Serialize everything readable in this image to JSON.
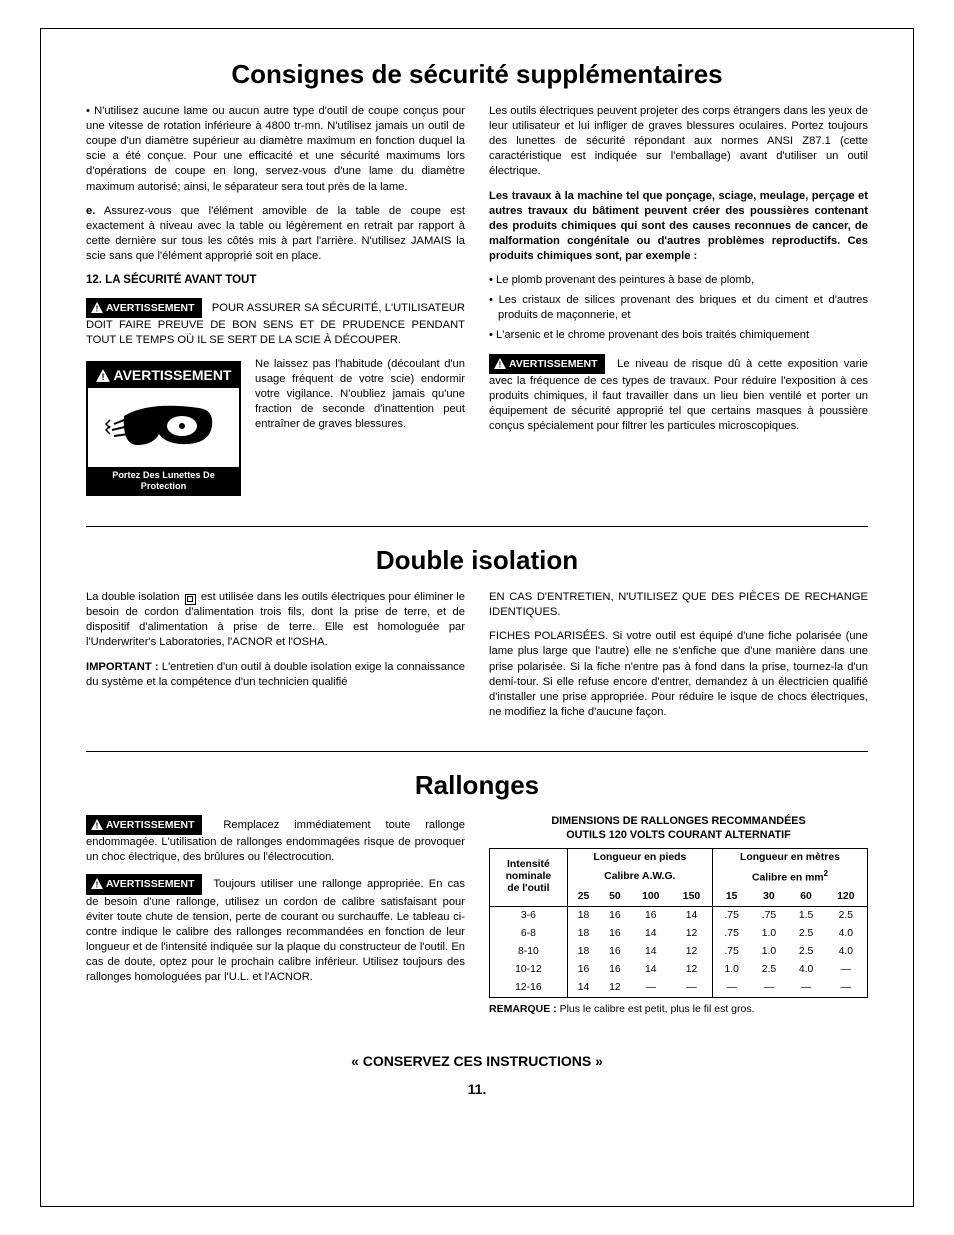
{
  "page_number": "11.",
  "keep_instructions": "« CONSERVEZ CES INSTRUCTIONS »",
  "warn_label": "AVERTISSEMENT",
  "sections": {
    "s1": {
      "title": "Consignes de sécurité supplémentaires",
      "left": {
        "p1": "• N'utilisez aucune lame ou aucun autre type d'outil de coupe conçus pour une vitesse de rotation inférieure à 4800 tr-mn. N'utilisez jamais un outil de coupe d'un diamètre supérieur au diamètre maximum en fonction duquel la scie a été conçue. Pour une efficacité et une sécurité maximums lors d'opérations de coupe en long, servez-vous d'une lame du diamètre maximum autorisé; ainsi, le séparateur sera tout près de la lame.",
        "p2_lead": "e.",
        "p2": "Assurez-vous que l'élément amovible de la table de coupe est exactement à niveau avec la table ou légèrement en retrait par rapport à cette dernière sur tous les côtés mis à part l'arrière. N'utilisez JAMAIS la scie sans que l'élément approprié soit en place.",
        "h12": "12. LA SÉCURITÉ AVANT TOUT",
        "p3": "POUR ASSURER SA SÉCURITÉ, L'UTILISATEUR DOIT FAIRE PREUVE DE BON SENS ET DE PRUDENCE PENDANT TOUT LE TEMPS OÙ IL SE SERT DE LA SCIE À DÉCOUPER.",
        "box_title": "AVERTISSEMENT",
        "box_caption": "Portez Des Lunettes De Protection",
        "p4": "Ne laissez pas l'habitude (découlant d'un usage fréquent de votre scie) endormir votre vigilance. N'oubliez jamais qu'une fraction de seconde d'inattention peut entraîner de graves blessures."
      },
      "right": {
        "p1": "Les outils électriques peuvent projeter des corps étrangers dans les yeux de leur utilisateur et lui infliger de graves blessures oculaires. Portez toujours des lunettes de sécurité répondant aux normes ANSI Z87.1 (cette caractéristique est indiquée sur l'emballage) avant d'utiliser un outil électrique.",
        "p2": "Les travaux à la machine tel que ponçage, sciage, meulage, perçage et autres travaux du bâtiment peuvent créer des poussières contenant des produits chimiques qui sont des causes reconnues de cancer, de malformation congénitale ou d'autres problèmes reproductifs. Ces produits chimiques sont, par exemple :",
        "b1": "Le plomb provenant des peintures à base de plomb,",
        "b2": "Les cristaux de silices provenant des briques et du ciment et d'autres produits de maçonnerie, et",
        "b3": "L'arsenic et le chrome provenant des bois traités chimiquement",
        "p3": "Le niveau de risque dû à cette exposition varie avec la fréquence de ces types de travaux. Pour réduire l'exposition à ces produits chimiques, il faut travailler dans un lieu bien ventilé et porter un équipement de sécurité approprié tel que certains masques à poussière conçus spécialement pour filtrer les particules microscopiques."
      }
    },
    "s2": {
      "title": "Double isolation",
      "left": {
        "p1a": "La double isolation",
        "p1b": "est utilisée dans les outils électriques pour éliminer le besoin de cordon d'alimentation trois fils, dont la prise de terre, et de dispositif d'alimentation à prise de terre. Elle est homologuée par l'Underwriter's Laboratories, l'ACNOR et l'OSHA.",
        "p2_lead": "IMPORTANT :",
        "p2": "L'entretien d'un outil à double isolation exige la connaissance du système et la compétence d'un technicien qualifié"
      },
      "right": {
        "p1": "EN CAS D'ENTRETIEN, N'UTILISEZ QUE DES PIÈCES DE RECHANGE IDENTIQUES.",
        "p2": "FICHES POLARISÉES. Si votre outil est équipé d'une fiche polarisée (une lame plus large que l'autre) elle ne s'enfiche que d'une manière dans une prise polarisée. Si la fiche n'entre pas à fond dans la prise, tournez-la d'un demi-tour. Si elle refuse encore d'entrer, demandez à un électricien qualifié d'installer une prise appropriée. Pour réduire le isque de chocs électriques, ne modifiez la fiche d'aucune façon."
      }
    },
    "s3": {
      "title": "Rallonges",
      "left": {
        "p1": "Remplacez immédiatement toute rallonge endommagée. L'utilisation de rallonges endommagées risque de provoquer un choc électrique, des brûlures ou l'électrocution.",
        "p2": "Toujours utiliser une rallonge appropriée. En cas de besoin d'une rallonge, utilisez un cordon de calibre satisfaisant pour éviter toute chute de tension, perte de courant ou surchauffe. Le tableau ci-contre indique le calibre des rallonges recommandées en fonction de leur longueur et de l'intensité indiquée sur la plaque du constructeur de l'outil. En cas de doute, optez pour le prochain calibre inférieur. Utilisez toujours des rallonges homologuées par l'U.L. et l'ACNOR."
      },
      "table": {
        "title1": "DIMENSIONS DE RALLONGES RECOMMANDÉES",
        "title2": "OUTILS 120 VOLTS COURANT ALTERNATIF",
        "col_intensity1": "Intensité",
        "col_intensity2": "nominale",
        "col_intensity3": "de l'outil",
        "col_feet": "Longueur en pieds",
        "col_awg": "Calibre A.W.G.",
        "col_m": "Longueur en mètres",
        "col_mm_a": "Calibre en mm",
        "col_mm_b": "2",
        "feet_heads": [
          "25",
          "50",
          "100",
          "150"
        ],
        "m_heads": [
          "15",
          "30",
          "60",
          "120"
        ],
        "ranges": [
          "3-6",
          "6-8",
          "8-10",
          "10-12",
          "12-16"
        ],
        "awg": [
          [
            "18",
            "16",
            "16",
            "14"
          ],
          [
            "18",
            "16",
            "14",
            "12"
          ],
          [
            "18",
            "16",
            "14",
            "12"
          ],
          [
            "16",
            "16",
            "14",
            "12"
          ],
          [
            "14",
            "12",
            "—",
            "—"
          ]
        ],
        "mm": [
          [
            ".75",
            ".75",
            "1.5",
            "2.5"
          ],
          [
            ".75",
            "1.0",
            "2.5",
            "4.0"
          ],
          [
            ".75",
            "1.0",
            "2.5",
            "4.0"
          ],
          [
            "1.0",
            "2.5",
            "4.0",
            "—"
          ],
          [
            "—",
            "—",
            "—",
            "—"
          ]
        ],
        "note_lead": "REMARQUE :",
        "note": "Plus le calibre est petit, plus le fil est gros."
      }
    }
  }
}
